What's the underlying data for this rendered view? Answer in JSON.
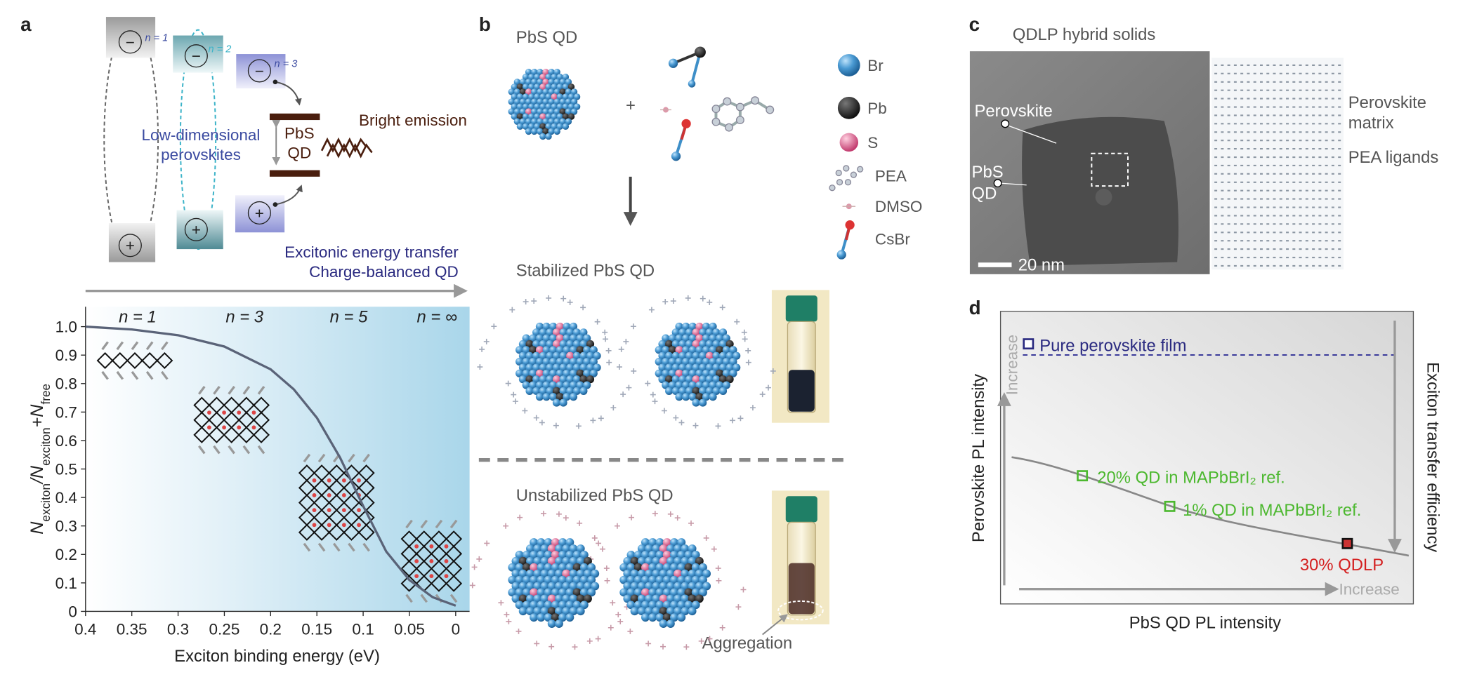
{
  "panel_labels": [
    "a",
    "b",
    "c",
    "d"
  ],
  "panel_a": {
    "levels": [
      "n = 1",
      "n = 2",
      "n = 3"
    ],
    "electron": "−",
    "hole": "+",
    "perovskites": [
      "Low-dimensional",
      "perovskites"
    ],
    "qd": [
      "PbS",
      "QD"
    ],
    "emission": "Bright emission",
    "transfer": [
      "Excitonic energy transfer",
      "Charge-balanced QD"
    ]
  },
  "chart_data": {
    "type": "line",
    "xlabel": "Exciton binding energy (eV)",
    "ylabel": [
      "N",
      "exciton",
      "/N",
      "exciton",
      "+N",
      "free"
    ],
    "annotations": [
      "n = 1",
      "n = 3",
      "n = 5",
      "n = ∞"
    ],
    "x": [
      0.4,
      0.35,
      0.3,
      0.25,
      0.2,
      0.175,
      0.15,
      0.125,
      0.1,
      0.075,
      0.05,
      0.025,
      0
    ],
    "values": [
      1.0,
      0.99,
      0.97,
      0.93,
      0.85,
      0.78,
      0.68,
      0.54,
      0.37,
      0.21,
      0.11,
      0.05,
      0.02
    ],
    "color": "#5a6378",
    "xlim": [
      0.4,
      -0.015
    ],
    "ylim": [
      0,
      1.07
    ],
    "xticks": [
      0.4,
      0.35,
      0.3,
      0.25,
      0.2,
      0.15,
      0.1,
      0.05,
      0
    ],
    "yticks": [
      0,
      0.1,
      0.2,
      0.3,
      0.4,
      0.5,
      0.6,
      0.7,
      0.8,
      0.9,
      {
        "value": 1,
        "label": "1.0"
      }
    ]
  },
  "panel_b": {
    "title": "PbS QD",
    "plus": "+",
    "legend": [
      "Br",
      "Pb",
      "S",
      "PEA",
      "DMSO",
      "CsBr"
    ],
    "stabilized": "Stabilized PbS QD",
    "unstabilized": "Unstabilized PbS QD",
    "aggregation": "Aggregation"
  },
  "panel_c": {
    "title": "QDLP hybrid solids",
    "perovskite": "Perovskite",
    "qd": [
      "PbS",
      "QD"
    ],
    "scale_bar": "20 nm",
    "matrix": [
      "Perovskite",
      "matrix"
    ],
    "ligands": "PEA ligands"
  },
  "panel_d": {
    "ylabel": "Perovskite PL intensity",
    "xlabel": "PbS QD PL intensity",
    "right_label": "Exciton transfer efficiency",
    "increase_y": "Increase",
    "increase_x": "Increase",
    "reference": "Pure perovskite film",
    "points": [
      "20% QD in MAPbBrI₂ ref.",
      "1% QD in MAPbBrI₂ ref.",
      "30% QDLP"
    ]
  }
}
